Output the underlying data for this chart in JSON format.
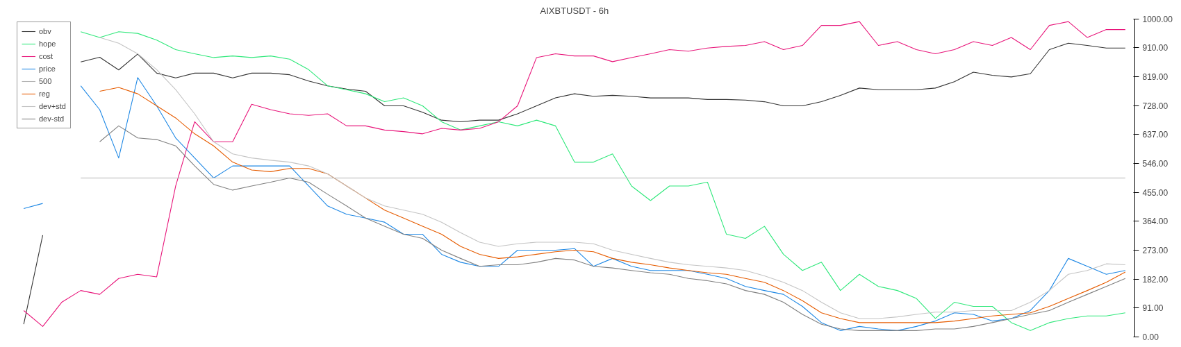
{
  "chart_data": {
    "type": "line",
    "title": "AIXBTUSDT - 6h",
    "categories": [
      null,
      null,
      null,
      null,
      null,
      null,
      null,
      null,
      null,
      null,
      null,
      null,
      null,
      null,
      null,
      null,
      null,
      null,
      null,
      null,
      null,
      null,
      null,
      null,
      null,
      null,
      null,
      null,
      null,
      null,
      null,
      null,
      null,
      null,
      null,
      null,
      null,
      null,
      null,
      null,
      null,
      null,
      null,
      null,
      null,
      null,
      null,
      null,
      null,
      null,
      null,
      null,
      null,
      null,
      null,
      null,
      null,
      null,
      null
    ],
    "series": [
      {
        "name": "obv",
        "color": "#333333",
        "values": [
          40,
          320,
          null,
          865,
          880,
          840,
          890,
          830,
          815,
          830,
          830,
          815,
          830,
          830,
          825,
          805,
          790,
          780,
          773,
          727,
          727,
          707,
          682,
          677,
          682,
          682,
          702,
          727,
          752,
          765,
          757,
          760,
          757,
          752,
          752,
          752,
          747,
          747,
          745,
          740,
          727,
          727,
          740,
          760,
          783,
          778,
          778,
          778,
          783,
          803,
          833,
          823,
          818,
          828,
          904,
          924,
          917,
          909,
          909
        ]
      },
      {
        "name": "hope",
        "color": "#2ee87a",
        "values": [
          null,
          null,
          null,
          960,
          942,
          960,
          955,
          934,
          904,
          891,
          879,
          884,
          879,
          884,
          874,
          841,
          790,
          778,
          765,
          740,
          752,
          727,
          677,
          651,
          664,
          677,
          664,
          682,
          664,
          550,
          550,
          576,
          475,
          429,
          475,
          475,
          487,
          323,
          310,
          348,
          260,
          209,
          235,
          146,
          197,
          159,
          146,
          121,
          58,
          109,
          96,
          96,
          45,
          20,
          45,
          58,
          66,
          66,
          76
        ]
      },
      {
        "name": "cost",
        "color": "#e8157a",
        "values": [
          83,
          33,
          109,
          146,
          134,
          184,
          197,
          189,
          475,
          677,
          614,
          614,
          732,
          715,
          702,
          697,
          702,
          664,
          664,
          651,
          646,
          639,
          656,
          651,
          656,
          677,
          727,
          879,
          891,
          884,
          884,
          866,
          879,
          891,
          904,
          899,
          909,
          914,
          917,
          929,
          904,
          917,
          980,
          980,
          992,
          917,
          929,
          904,
          891,
          904,
          929,
          917,
          942,
          904,
          980,
          992,
          942,
          967,
          967
        ]
      },
      {
        "name": "price",
        "color": "#1e88e5",
        "values": [
          404,
          420,
          null,
          790,
          715,
          563,
          816,
          727,
          626,
          563,
          500,
          538,
          538,
          538,
          538,
          475,
          412,
          386,
          374,
          361,
          323,
          323,
          260,
          235,
          222,
          222,
          273,
          273,
          273,
          278,
          222,
          247,
          222,
          209,
          209,
          209,
          197,
          184,
          159,
          146,
          134,
          96,
          45,
          20,
          33,
          25,
          20,
          33,
          50,
          76,
          71,
          50,
          58,
          83,
          146,
          247,
          222,
          197,
          209
        ]
      },
      {
        "name": "500",
        "color": "#b0b0b0",
        "values": [
          null,
          null,
          null,
          500,
          500,
          500,
          500,
          500,
          500,
          500,
          500,
          500,
          500,
          500,
          500,
          500,
          500,
          500,
          500,
          500,
          500,
          500,
          500,
          500,
          500,
          500,
          500,
          500,
          500,
          500,
          500,
          500,
          500,
          500,
          500,
          500,
          500,
          500,
          500,
          500,
          500,
          500,
          500,
          500,
          500,
          500,
          500,
          500,
          500,
          500,
          500,
          500,
          500,
          500,
          500,
          500,
          500,
          500,
          500
        ]
      },
      {
        "name": "reg",
        "color": "#e65c00",
        "values": [
          null,
          null,
          null,
          null,
          773,
          785,
          765,
          727,
          689,
          639,
          601,
          550,
          525,
          520,
          530,
          530,
          513,
          475,
          437,
          399,
          374,
          348,
          323,
          285,
          260,
          247,
          252,
          260,
          268,
          273,
          268,
          247,
          235,
          227,
          217,
          209,
          202,
          197,
          184,
          172,
          146,
          114,
          76,
          58,
          45,
          45,
          45,
          45,
          45,
          50,
          58,
          66,
          71,
          76,
          96,
          121,
          146,
          172,
          204
        ]
      },
      {
        "name": "dev+std",
        "color": "#c4c4c4",
        "values": [
          null,
          null,
          null,
          null,
          942,
          924,
          891,
          841,
          778,
          702,
          614,
          576,
          563,
          556,
          550,
          538,
          513,
          475,
          437,
          412,
          399,
          386,
          361,
          328,
          298,
          285,
          293,
          298,
          298,
          298,
          293,
          273,
          260,
          247,
          235,
          227,
          222,
          217,
          209,
          192,
          172,
          146,
          109,
          76,
          58,
          58,
          63,
          71,
          78,
          78,
          83,
          83,
          83,
          109,
          146,
          197,
          209,
          230,
          227
        ]
      },
      {
        "name": "dev-std",
        "color": "#808080",
        "values": [
          null,
          null,
          null,
          null,
          614,
          664,
          626,
          621,
          601,
          538,
          480,
          462,
          475,
          487,
          500,
          487,
          449,
          412,
          374,
          348,
          323,
          310,
          273,
          247,
          222,
          227,
          227,
          235,
          247,
          242,
          222,
          217,
          209,
          202,
          197,
          184,
          177,
          167,
          146,
          134,
          109,
          71,
          40,
          25,
          20,
          20,
          20,
          20,
          25,
          25,
          33,
          45,
          58,
          71,
          83,
          109,
          134,
          159,
          184
        ]
      }
    ],
    "ylim": [
      0,
      1000
    ],
    "yticks": [
      {
        "value": 0,
        "label": "0.00"
      },
      {
        "value": 91,
        "label": "91.00"
      },
      {
        "value": 182,
        "label": "182.00"
      },
      {
        "value": 273,
        "label": "273.00"
      },
      {
        "value": 364,
        "label": "364.00"
      },
      {
        "value": 455,
        "label": "455.00"
      },
      {
        "value": 546,
        "label": "546.00"
      },
      {
        "value": 637,
        "label": "637.00"
      },
      {
        "value": 728,
        "label": "728.00"
      },
      {
        "value": 819,
        "label": "819.00"
      },
      {
        "value": 910,
        "label": "910.00"
      },
      {
        "value": 1000,
        "label": "1000.00"
      }
    ],
    "tick_labels": "y",
    "legend": "top left"
  }
}
